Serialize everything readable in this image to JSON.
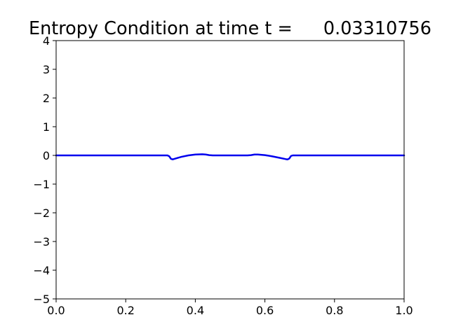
{
  "chart_data": {
    "type": "line",
    "title_prefix": "Entropy Condition at time t =",
    "title_value": "0.03310756",
    "xlabel": "",
    "ylabel": "",
    "xlim": [
      0.0,
      1.0
    ],
    "ylim": [
      -5,
      4
    ],
    "grid": false,
    "legend": "none",
    "x_ticks": [
      0.0,
      0.2,
      0.4,
      0.6,
      0.8,
      1.0
    ],
    "x_tick_labels": [
      "0.0",
      "0.2",
      "0.4",
      "0.6",
      "0.8",
      "1.0"
    ],
    "y_ticks": [
      4,
      3,
      2,
      1,
      0,
      -1,
      -2,
      -3,
      -4,
      -5
    ],
    "y_tick_labels": [
      "4",
      "3",
      "2",
      "1",
      "0",
      "−1",
      "−2",
      "−3",
      "−4",
      "−5"
    ],
    "series": [
      {
        "color": "#0000ee",
        "x": [
          0.0,
          0.1,
          0.2,
          0.3,
          0.32,
          0.325,
          0.33,
          0.335,
          0.34,
          0.36,
          0.38,
          0.4,
          0.42,
          0.43,
          0.44,
          0.45,
          0.5,
          0.55,
          0.56,
          0.57,
          0.58,
          0.6,
          0.62,
          0.64,
          0.66,
          0.665,
          0.67,
          0.675,
          0.68,
          0.7,
          0.8,
          0.9,
          1.0
        ],
        "y": [
          0.0,
          0.0,
          0.0,
          0.0,
          0.0,
          -0.03,
          -0.12,
          -0.14,
          -0.12,
          -0.05,
          0.0,
          0.03,
          0.04,
          0.03,
          0.01,
          0.0,
          0.0,
          0.0,
          0.01,
          0.03,
          0.03,
          0.01,
          -0.03,
          -0.08,
          -0.13,
          -0.14,
          -0.11,
          -0.02,
          0.0,
          0.0,
          0.0,
          0.0,
          0.0
        ]
      }
    ]
  }
}
